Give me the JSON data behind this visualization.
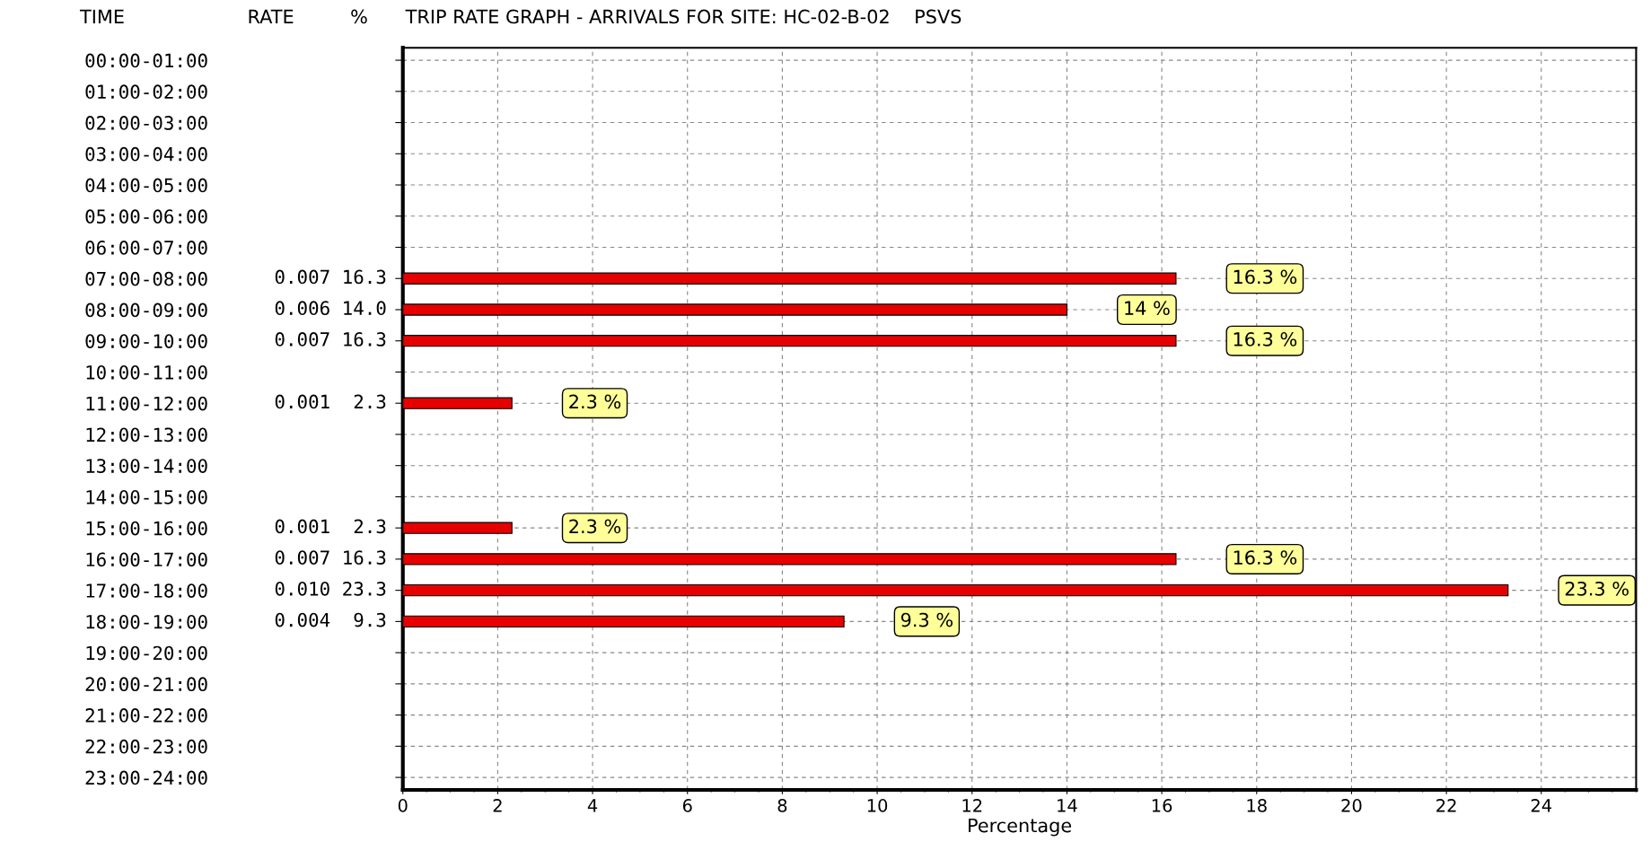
{
  "chart_data": {
    "type": "bar",
    "orientation": "horizontal",
    "title": "TRIP RATE GRAPH - ARRIVALS FOR SITE: HC-02-B-02    PSVS",
    "xlabel": "Percentage",
    "categories": [
      "00:00-01:00",
      "01:00-02:00",
      "02:00-03:00",
      "03:00-04:00",
      "04:00-05:00",
      "05:00-06:00",
      "06:00-07:00",
      "07:00-08:00",
      "08:00-09:00",
      "09:00-10:00",
      "10:00-11:00",
      "11:00-12:00",
      "12:00-13:00",
      "13:00-14:00",
      "14:00-15:00",
      "15:00-16:00",
      "16:00-17:00",
      "17:00-18:00",
      "18:00-19:00",
      "19:00-20:00",
      "20:00-21:00",
      "21:00-22:00",
      "22:00-23:00",
      "23:00-24:00"
    ],
    "values": [
      null,
      null,
      null,
      null,
      null,
      null,
      null,
      16.3,
      14.0,
      16.3,
      null,
      2.3,
      null,
      null,
      null,
      2.3,
      16.3,
      23.3,
      9.3,
      null,
      null,
      null,
      null,
      null
    ],
    "value_labels": [
      null,
      null,
      null,
      null,
      null,
      null,
      null,
      "16.3 %",
      "14 %",
      "16.3 %",
      null,
      "2.3 %",
      null,
      null,
      null,
      "2.3 %",
      "16.3 %",
      "23.3 %",
      "9.3 %",
      null,
      null,
      null,
      null,
      null
    ],
    "color": "#e60000",
    "xlim": [
      0,
      26
    ],
    "xticks": [
      0,
      2,
      4,
      6,
      8,
      10,
      12,
      14,
      16,
      18,
      20,
      22,
      24
    ],
    "grid": true,
    "legend": false,
    "annotations": [
      "TIME",
      "RATE",
      "%",
      "0.007 16.3",
      "0.006 14.0",
      "0.007 16.3",
      "0.001  2.3",
      "0.001  2.3",
      "0.007 16.3",
      "0.010 23.3",
      "0.004  9.3"
    ]
  }
}
